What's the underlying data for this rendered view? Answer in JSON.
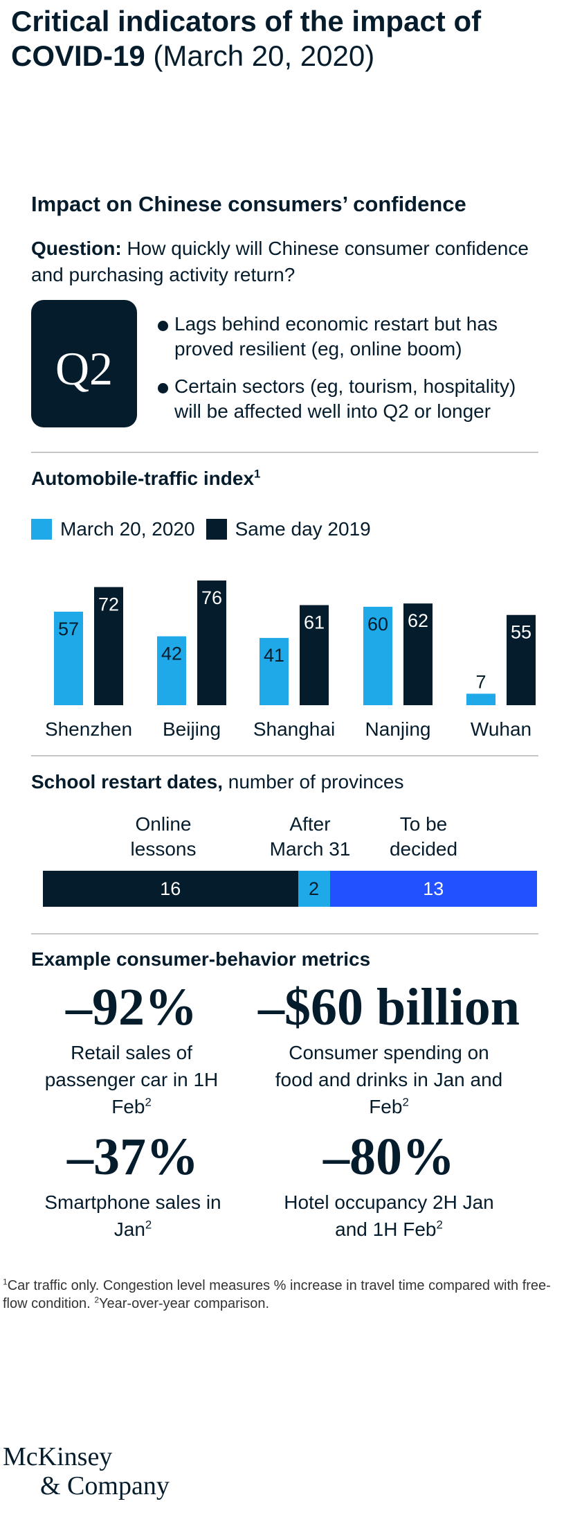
{
  "title": "Critical indicators of the impact of COVID-19",
  "title_date": "(March 20, 2020)",
  "section1": {
    "heading": "Impact on Chinese consumers’ confidence",
    "question_label": "Question:",
    "question": "How quickly will Chinese consumer confidence and purchasing activity return?",
    "badge": "Q2",
    "bullets": [
      "Lags behind economic restart but has proved resilient (eg, online boom)",
      "Certain sectors (eg, tourism, hospitality) will be affected well into Q2 or longer"
    ]
  },
  "colors": {
    "navy": "#051c2c",
    "light_blue": "#1fa9e8",
    "royal_blue": "#2251ff",
    "rule": "#c6c6c6"
  },
  "chart_data": [
    {
      "type": "bar",
      "title": "Automobile-traffic index",
      "title_sup": "1",
      "categories": [
        "Shenzhen",
        "Beijing",
        "Shanghai",
        "Nanjing",
        "Wuhan"
      ],
      "series": [
        {
          "name": "March 20, 2020",
          "color": "#1fa9e8",
          "values": [
            57,
            42,
            41,
            60,
            7
          ]
        },
        {
          "name": "Same day 2019",
          "color": "#051c2c",
          "values": [
            72,
            76,
            61,
            62,
            55
          ]
        }
      ],
      "ylim": [
        0,
        76
      ],
      "legend": "top-left",
      "grid": false
    },
    {
      "type": "bar",
      "orientation": "horizontal-stacked",
      "title": "School restart dates,",
      "subtitle": "number of provinces",
      "segments": [
        {
          "label": "Online lessons",
          "value": 16,
          "color": "#051c2c"
        },
        {
          "label": "After March 31",
          "value": 2,
          "color": "#1fa9e8"
        },
        {
          "label": "To be decided",
          "value": 13,
          "color": "#2251ff"
        }
      ]
    }
  ],
  "metrics": {
    "heading": "Example consumer-behavior metrics",
    "items": [
      {
        "value": "–92%",
        "desc": "Retail sales of passenger car in 1H Feb",
        "sup": "2"
      },
      {
        "value": "–$60 billion",
        "desc": "Consumer spending on food and drinks in Jan and Feb",
        "sup": "2"
      },
      {
        "value": "–37%",
        "desc": "Smartphone sales in Jan",
        "sup": "2"
      },
      {
        "value": "–80%",
        "desc": "Hotel occupancy 2H Jan and 1H Feb",
        "sup": "2"
      }
    ]
  },
  "footnote": {
    "n1": "1",
    "t1": "Car traffic only. Congestion level measures % increase in travel time compared with free-flow condition.",
    "n2": "2",
    "t2": "Year-over-year comparison."
  },
  "logo": {
    "line1": "McKinsey",
    "line2": "& Company"
  }
}
